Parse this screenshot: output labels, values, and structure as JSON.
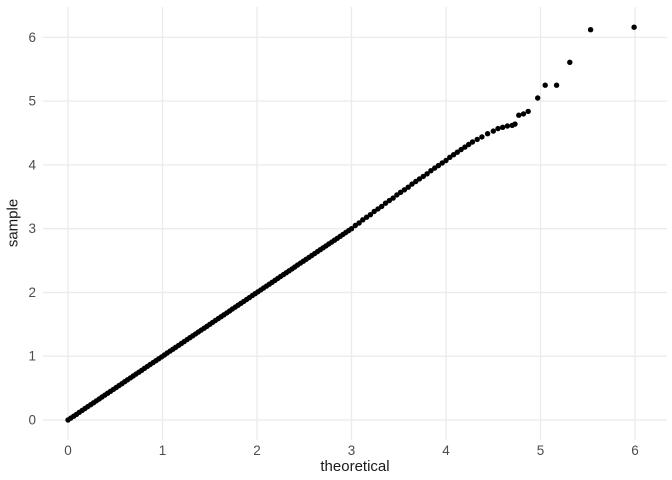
{
  "figure": {
    "kind": "qq-plot",
    "background": "#ffffff"
  },
  "style": {
    "grid_color": "#ebebeb",
    "point_color": "#000000",
    "tick_label_color": "#4d4d4d",
    "axis_title_color": "#1a1a1a"
  },
  "chart_data": {
    "type": "scatter",
    "title": "",
    "xlabel": "theoretical",
    "ylabel": "sample",
    "xlim": [
      -0.26,
      6.34
    ],
    "ylim": [
      -0.31,
      6.48
    ],
    "x_ticks": [
      0,
      1,
      2,
      3,
      4,
      5,
      6
    ],
    "y_ticks": [
      0,
      1,
      2,
      3,
      4,
      5,
      6
    ],
    "grid": "major-only",
    "legend": "none",
    "points": [
      [
        0.0,
        0.0
      ],
      [
        0.03,
        0.03
      ],
      [
        0.06,
        0.06
      ],
      [
        0.09,
        0.09
      ],
      [
        0.12,
        0.12
      ],
      [
        0.15,
        0.15
      ],
      [
        0.18,
        0.18
      ],
      [
        0.21,
        0.21
      ],
      [
        0.24,
        0.24
      ],
      [
        0.27,
        0.27
      ],
      [
        0.3,
        0.3
      ],
      [
        0.33,
        0.33
      ],
      [
        0.36,
        0.36
      ],
      [
        0.39,
        0.39
      ],
      [
        0.42,
        0.42
      ],
      [
        0.45,
        0.45
      ],
      [
        0.48,
        0.48
      ],
      [
        0.51,
        0.51
      ],
      [
        0.54,
        0.54
      ],
      [
        0.57,
        0.57
      ],
      [
        0.6,
        0.6
      ],
      [
        0.63,
        0.63
      ],
      [
        0.66,
        0.66
      ],
      [
        0.69,
        0.69
      ],
      [
        0.72,
        0.72
      ],
      [
        0.75,
        0.75
      ],
      [
        0.78,
        0.78
      ],
      [
        0.81,
        0.81
      ],
      [
        0.84,
        0.84
      ],
      [
        0.87,
        0.87
      ],
      [
        0.9,
        0.9
      ],
      [
        0.93,
        0.93
      ],
      [
        0.96,
        0.96
      ],
      [
        0.99,
        0.99
      ],
      [
        1.02,
        1.02
      ],
      [
        1.05,
        1.05
      ],
      [
        1.08,
        1.08
      ],
      [
        1.11,
        1.11
      ],
      [
        1.14,
        1.14
      ],
      [
        1.17,
        1.17
      ],
      [
        1.2,
        1.2
      ],
      [
        1.23,
        1.23
      ],
      [
        1.26,
        1.26
      ],
      [
        1.29,
        1.29
      ],
      [
        1.32,
        1.32
      ],
      [
        1.35,
        1.35
      ],
      [
        1.38,
        1.38
      ],
      [
        1.41,
        1.41
      ],
      [
        1.44,
        1.44
      ],
      [
        1.47,
        1.47
      ],
      [
        1.5,
        1.5
      ],
      [
        1.53,
        1.53
      ],
      [
        1.56,
        1.56
      ],
      [
        1.59,
        1.59
      ],
      [
        1.62,
        1.62
      ],
      [
        1.65,
        1.65
      ],
      [
        1.68,
        1.68
      ],
      [
        1.71,
        1.71
      ],
      [
        1.74,
        1.74
      ],
      [
        1.77,
        1.77
      ],
      [
        1.8,
        1.8
      ],
      [
        1.83,
        1.83
      ],
      [
        1.86,
        1.86
      ],
      [
        1.89,
        1.89
      ],
      [
        1.92,
        1.92
      ],
      [
        1.95,
        1.95
      ],
      [
        1.98,
        1.98
      ],
      [
        2.01,
        2.01
      ],
      [
        2.04,
        2.04
      ],
      [
        2.07,
        2.07
      ],
      [
        2.1,
        2.1
      ],
      [
        2.13,
        2.13
      ],
      [
        2.16,
        2.16
      ],
      [
        2.19,
        2.19
      ],
      [
        2.22,
        2.22
      ],
      [
        2.25,
        2.25
      ],
      [
        2.28,
        2.28
      ],
      [
        2.31,
        2.31
      ],
      [
        2.34,
        2.34
      ],
      [
        2.37,
        2.37
      ],
      [
        2.4,
        2.4
      ],
      [
        2.43,
        2.43
      ],
      [
        2.46,
        2.46
      ],
      [
        2.49,
        2.49
      ],
      [
        2.52,
        2.52
      ],
      [
        2.55,
        2.55
      ],
      [
        2.58,
        2.58
      ],
      [
        2.61,
        2.61
      ],
      [
        2.64,
        2.64
      ],
      [
        2.67,
        2.67
      ],
      [
        2.7,
        2.7
      ],
      [
        2.73,
        2.73
      ],
      [
        2.76,
        2.76
      ],
      [
        2.79,
        2.79
      ],
      [
        2.82,
        2.82
      ],
      [
        2.85,
        2.85
      ],
      [
        2.88,
        2.88
      ],
      [
        2.91,
        2.91
      ],
      [
        2.94,
        2.94
      ],
      [
        2.97,
        2.97
      ],
      [
        3.0,
        3.0
      ],
      [
        3.04,
        3.05
      ],
      [
        3.08,
        3.09
      ],
      [
        3.12,
        3.14
      ],
      [
        3.16,
        3.18
      ],
      [
        3.2,
        3.22
      ],
      [
        3.24,
        3.27
      ],
      [
        3.28,
        3.31
      ],
      [
        3.32,
        3.35
      ],
      [
        3.36,
        3.4
      ],
      [
        3.4,
        3.44
      ],
      [
        3.44,
        3.48
      ],
      [
        3.48,
        3.53
      ],
      [
        3.52,
        3.57
      ],
      [
        3.56,
        3.61
      ],
      [
        3.6,
        3.65
      ],
      [
        3.64,
        3.7
      ],
      [
        3.68,
        3.74
      ],
      [
        3.72,
        3.78
      ],
      [
        3.76,
        3.82
      ],
      [
        3.8,
        3.86
      ],
      [
        3.84,
        3.91
      ],
      [
        3.88,
        3.95
      ],
      [
        3.92,
        3.99
      ],
      [
        3.96,
        4.03
      ],
      [
        4.0,
        4.07
      ],
      [
        4.04,
        4.12
      ],
      [
        4.08,
        4.16
      ],
      [
        4.12,
        4.2
      ],
      [
        4.16,
        4.24
      ],
      [
        4.2,
        4.28
      ],
      [
        4.24,
        4.32
      ],
      [
        4.28,
        4.36
      ],
      [
        4.33,
        4.4
      ],
      [
        4.38,
        4.44
      ],
      [
        4.44,
        4.49
      ],
      [
        4.5,
        4.53
      ],
      [
        4.55,
        4.57
      ],
      [
        4.6,
        4.59
      ],
      [
        4.65,
        4.61
      ],
      [
        4.7,
        4.62
      ],
      [
        4.73,
        4.64
      ],
      [
        4.77,
        4.78
      ],
      [
        4.82,
        4.8
      ],
      [
        4.87,
        4.84
      ],
      [
        4.97,
        5.05
      ],
      [
        5.05,
        5.25
      ],
      [
        5.17,
        5.25
      ],
      [
        5.31,
        5.61
      ],
      [
        5.53,
        6.12
      ],
      [
        5.99,
        6.16
      ]
    ]
  }
}
